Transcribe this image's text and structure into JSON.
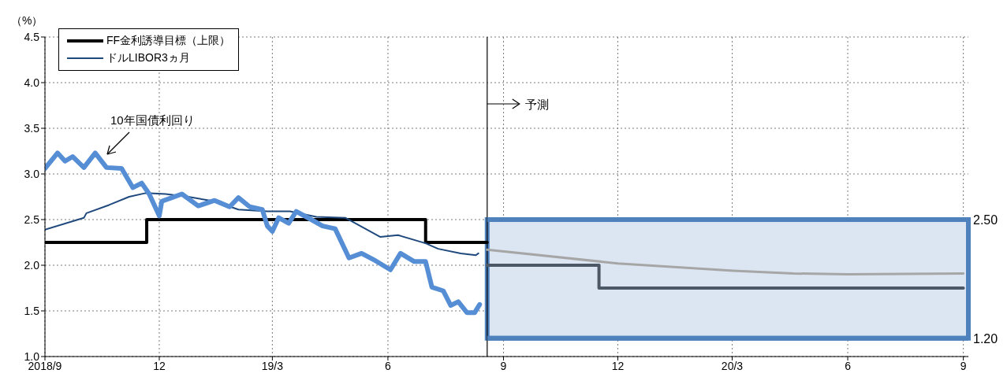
{
  "chart_data": {
    "type": "line",
    "ylabel": "（%）",
    "series": [
      {
        "name": "FF金利誘導目標（上限）",
        "type": "step",
        "color": "#000000",
        "x": [
          "2018-09-01",
          "2018-11-21",
          "2019-07-01",
          "2019-08-19"
        ],
        "values": [
          2.25,
          2.5,
          2.25,
          2.25
        ]
      },
      {
        "name": "ドルLIBOR3ヵ月",
        "color": "#1f497d",
        "x": [
          "2018-09-01",
          "2018-10-02",
          "2018-10-04",
          "2018-10-22",
          "2018-11-07",
          "2018-11-20",
          "2018-12-06",
          "2018-12-24",
          "2019-01-14",
          "2019-02-02",
          "2019-02-25",
          "2019-03-15",
          "2019-04-05",
          "2019-04-28",
          "2019-05-26",
          "2019-06-09",
          "2019-07-01",
          "2019-07-11",
          "2019-07-29",
          "2019-08-10",
          "2019-08-12"
        ],
        "values": [
          2.39,
          2.52,
          2.57,
          2.66,
          2.75,
          2.79,
          2.78,
          2.75,
          2.7,
          2.61,
          2.59,
          2.59,
          2.53,
          2.52,
          2.31,
          2.33,
          2.24,
          2.18,
          2.13,
          2.11,
          2.13
        ]
      },
      {
        "color": "#558ed5",
        "x": [
          "2018-09-01",
          "2018-09-11",
          "2018-09-17",
          "2018-09-23",
          "2018-10-02",
          "2018-10-11",
          "2018-10-20",
          "2018-11-01",
          "2018-11-10",
          "2018-11-17",
          "2018-11-23",
          "2018-12-01",
          "2018-12-03",
          "2018-12-11",
          "2018-12-19",
          "2019-01-01",
          "2019-01-14",
          "2019-01-26",
          "2019-02-02",
          "2019-02-11",
          "2019-02-21",
          "2019-02-25",
          "2019-03-01",
          "2019-03-06",
          "2019-03-14",
          "2019-03-20",
          "2019-04-01",
          "2019-04-10",
          "2019-04-20",
          "2019-05-01",
          "2019-05-11",
          "2019-05-22",
          "2019-06-03",
          "2019-06-11",
          "2019-06-22",
          "2019-07-01",
          "2019-07-06",
          "2019-07-15",
          "2019-07-21",
          "2019-07-27",
          "2019-08-03",
          "2019-08-09",
          "2019-08-13"
        ],
        "values": [
          3.06,
          3.23,
          3.14,
          3.19,
          3.07,
          3.23,
          3.07,
          3.06,
          2.85,
          2.9,
          2.78,
          2.54,
          2.7,
          2.74,
          2.78,
          2.65,
          2.71,
          2.64,
          2.74,
          2.64,
          2.61,
          2.43,
          2.37,
          2.52,
          2.46,
          2.59,
          2.5,
          2.43,
          2.4,
          2.08,
          2.13,
          2.05,
          1.95,
          2.13,
          2.04,
          2.04,
          1.76,
          1.72,
          1.56,
          1.6,
          1.48,
          1.48,
          1.57
        ]
      },
      {
        "type": "step",
        "color": "#4d5866",
        "x": [
          "2019-08-19",
          "2019-11-16",
          "2020-09-01"
        ],
        "values": [
          2.0,
          1.75,
          1.75
        ]
      },
      {
        "color": "#a6a6a6",
        "x": [
          "2019-08-19",
          "2019-12-01",
          "2020-03-02",
          "2020-04-19",
          "2020-06-01",
          "2020-09-01"
        ],
        "values": [
          2.17,
          2.02,
          1.94,
          1.91,
          1.9,
          1.91
        ]
      }
    ],
    "xlim": [
      "2018-09-01",
      "2020-09-05"
    ],
    "xticks": [
      {
        "value": "2018-09-01",
        "label": "2018/9"
      },
      {
        "value": "2018-12-01",
        "label": "12"
      },
      {
        "value": "2019-03-01",
        "label": "19/3"
      },
      {
        "value": "2019-06-01",
        "label": "6"
      },
      {
        "value": "2019-09-01",
        "label": "9"
      },
      {
        "value": "2019-12-01",
        "label": "12"
      },
      {
        "value": "2020-03-01",
        "label": "20/3"
      },
      {
        "value": "2020-06-01",
        "label": "6"
      },
      {
        "value": "2020-09-01",
        "label": "9"
      }
    ],
    "ylim": [
      1.0,
      4.5
    ],
    "yticks": [
      {
        "value": 1.0,
        "label": "1.0"
      },
      {
        "value": 1.5,
        "label": "1.5"
      },
      {
        "value": 2.0,
        "label": "2.0"
      },
      {
        "value": 2.5,
        "label": "2.5"
      },
      {
        "value": 3.0,
        "label": "3.0"
      },
      {
        "value": 3.5,
        "label": "3.5"
      },
      {
        "value": 4.0,
        "label": "4.0"
      },
      {
        "value": 4.5,
        "label": "4.5"
      }
    ],
    "ref_lines": [
      {
        "axis": "x",
        "value": "2019-08-19",
        "label": "予測",
        "color": "#000000"
      },
      {
        "axis": "y",
        "value": 2.5,
        "label": "2.50",
        "color": "#4f81bd"
      },
      {
        "axis": "y",
        "value": 1.2,
        "label": "1.20",
        "color": "#4f81bd"
      }
    ],
    "bands": [
      {
        "axis": "y",
        "from": 1.2,
        "to": 2.5,
        "color": "#dce6f2"
      }
    ],
    "annotations": [
      "10年国債利回り"
    ],
    "grid": true,
    "legend": "top left",
    "marker": "none"
  }
}
